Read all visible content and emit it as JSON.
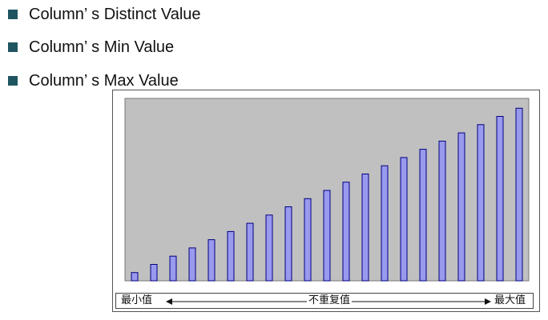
{
  "bullets": [
    {
      "text": "Column’ s Distinct Value"
    },
    {
      "text": "Column’ s Min Value"
    },
    {
      "text": "Column’ s Max Value"
    }
  ],
  "colors": {
    "bullet": "#1f5560",
    "plot_bg": "#c0c0c0",
    "bar_fill": "#9999ee",
    "bar_stroke": "#000080"
  },
  "chart_data": {
    "type": "bar",
    "values": [
      1,
      2,
      3,
      4,
      5,
      6,
      7,
      8,
      9,
      10,
      11,
      12,
      13,
      14,
      15,
      16,
      17,
      18,
      19,
      20,
      21
    ],
    "ylim": [
      0,
      22
    ],
    "grid": false,
    "legend": "none",
    "xaxis": {
      "left_label": "最小值",
      "center_label": "不重复值",
      "right_label": "最大值"
    }
  }
}
